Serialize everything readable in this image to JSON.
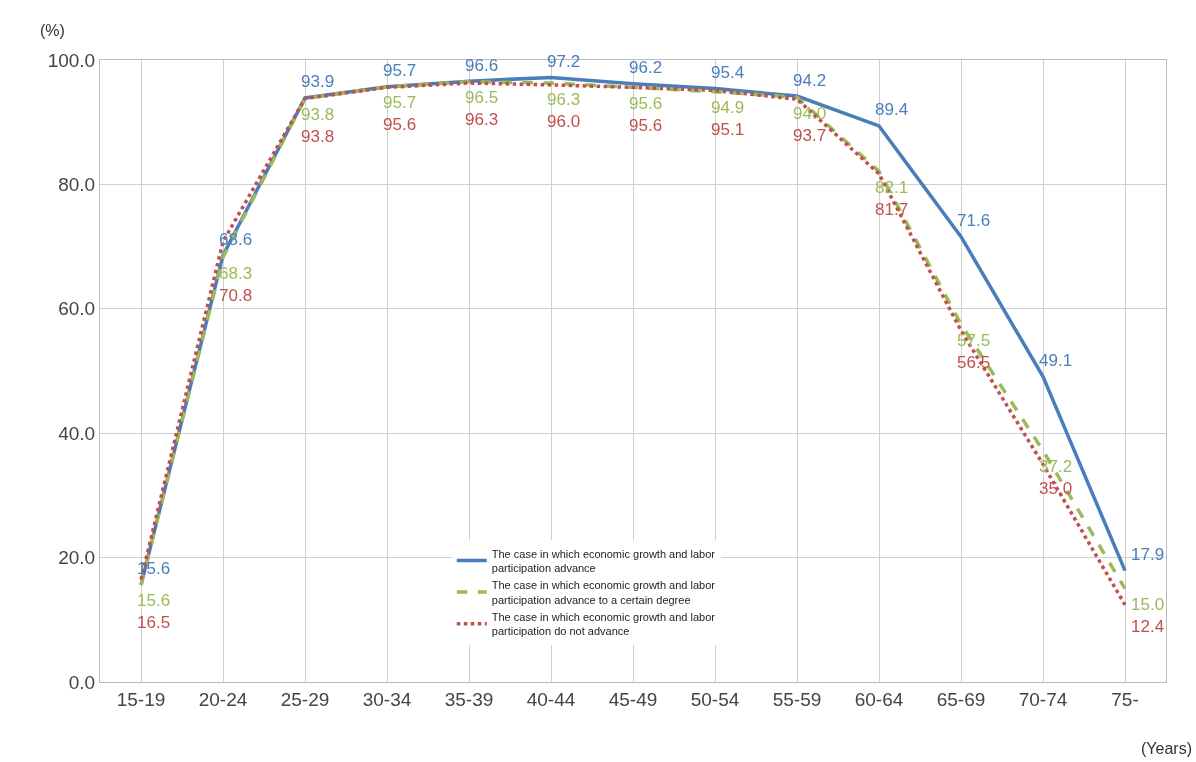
{
  "chart_data": {
    "type": "line",
    "ylabel": "(%)",
    "xlabel": "(Years)",
    "categories": [
      "15-19",
      "20-24",
      "25-29",
      "30-34",
      "35-39",
      "40-44",
      "45-49",
      "50-54",
      "55-59",
      "60-64",
      "65-69",
      "70-74",
      "75-"
    ],
    "series": [
      {
        "name": "The case in which economic growth and labor participation advance",
        "color": "#4a7ebb",
        "line_style": "solid",
        "values": [
          15.6,
          68.6,
          93.9,
          95.7,
          96.6,
          97.2,
          96.2,
          95.4,
          94.2,
          89.4,
          71.6,
          49.1,
          17.9
        ],
        "value_labels": [
          "15.6",
          "68.6",
          "93.9",
          "95.7",
          "96.6",
          "97.2",
          "96.2",
          "95.4",
          "94.2",
          "89.4",
          "71.6",
          "49.1",
          "17.9"
        ]
      },
      {
        "name": "The case in which economic growth and labor participation advance to a certain degree",
        "color": "#9bbb59",
        "line_style": "dashed",
        "values": [
          15.6,
          68.3,
          93.8,
          95.7,
          96.5,
          96.3,
          95.6,
          94.9,
          94.0,
          82.1,
          57.5,
          37.2,
          15.0
        ],
        "value_labels": [
          "15.6",
          "68.3",
          "93.8",
          "95.7",
          "96.5",
          "96.3",
          "95.6",
          "94.9",
          "94.0",
          "82.1",
          "57.5",
          "37.2",
          "15.0"
        ]
      },
      {
        "name": "The case in which economic growth and labor participation do not advance",
        "color": "#c0504d",
        "line_style": "dotted",
        "values": [
          16.5,
          70.8,
          93.8,
          95.6,
          96.3,
          96.0,
          95.6,
          95.1,
          93.7,
          81.7,
          56.5,
          35.0,
          12.4
        ],
        "value_labels": [
          "16.5",
          "70.8",
          "93.8",
          "95.6",
          "96.3",
          "96.0",
          "95.6",
          "95.1",
          "93.7",
          "81.7",
          "56.5",
          "35.0",
          "12.4"
        ]
      }
    ],
    "ylim": [
      0,
      100
    ],
    "yticks": [
      {
        "value": 0,
        "label": "0.0"
      },
      {
        "value": 20,
        "label": "20.0"
      },
      {
        "value": 40,
        "label": "40.0"
      },
      {
        "value": 60,
        "label": "60.0"
      },
      {
        "value": 80,
        "label": "80.0"
      },
      {
        "value": 100,
        "label": "100.0"
      }
    ],
    "grid": true,
    "legend": "bottom",
    "marker": "none"
  }
}
